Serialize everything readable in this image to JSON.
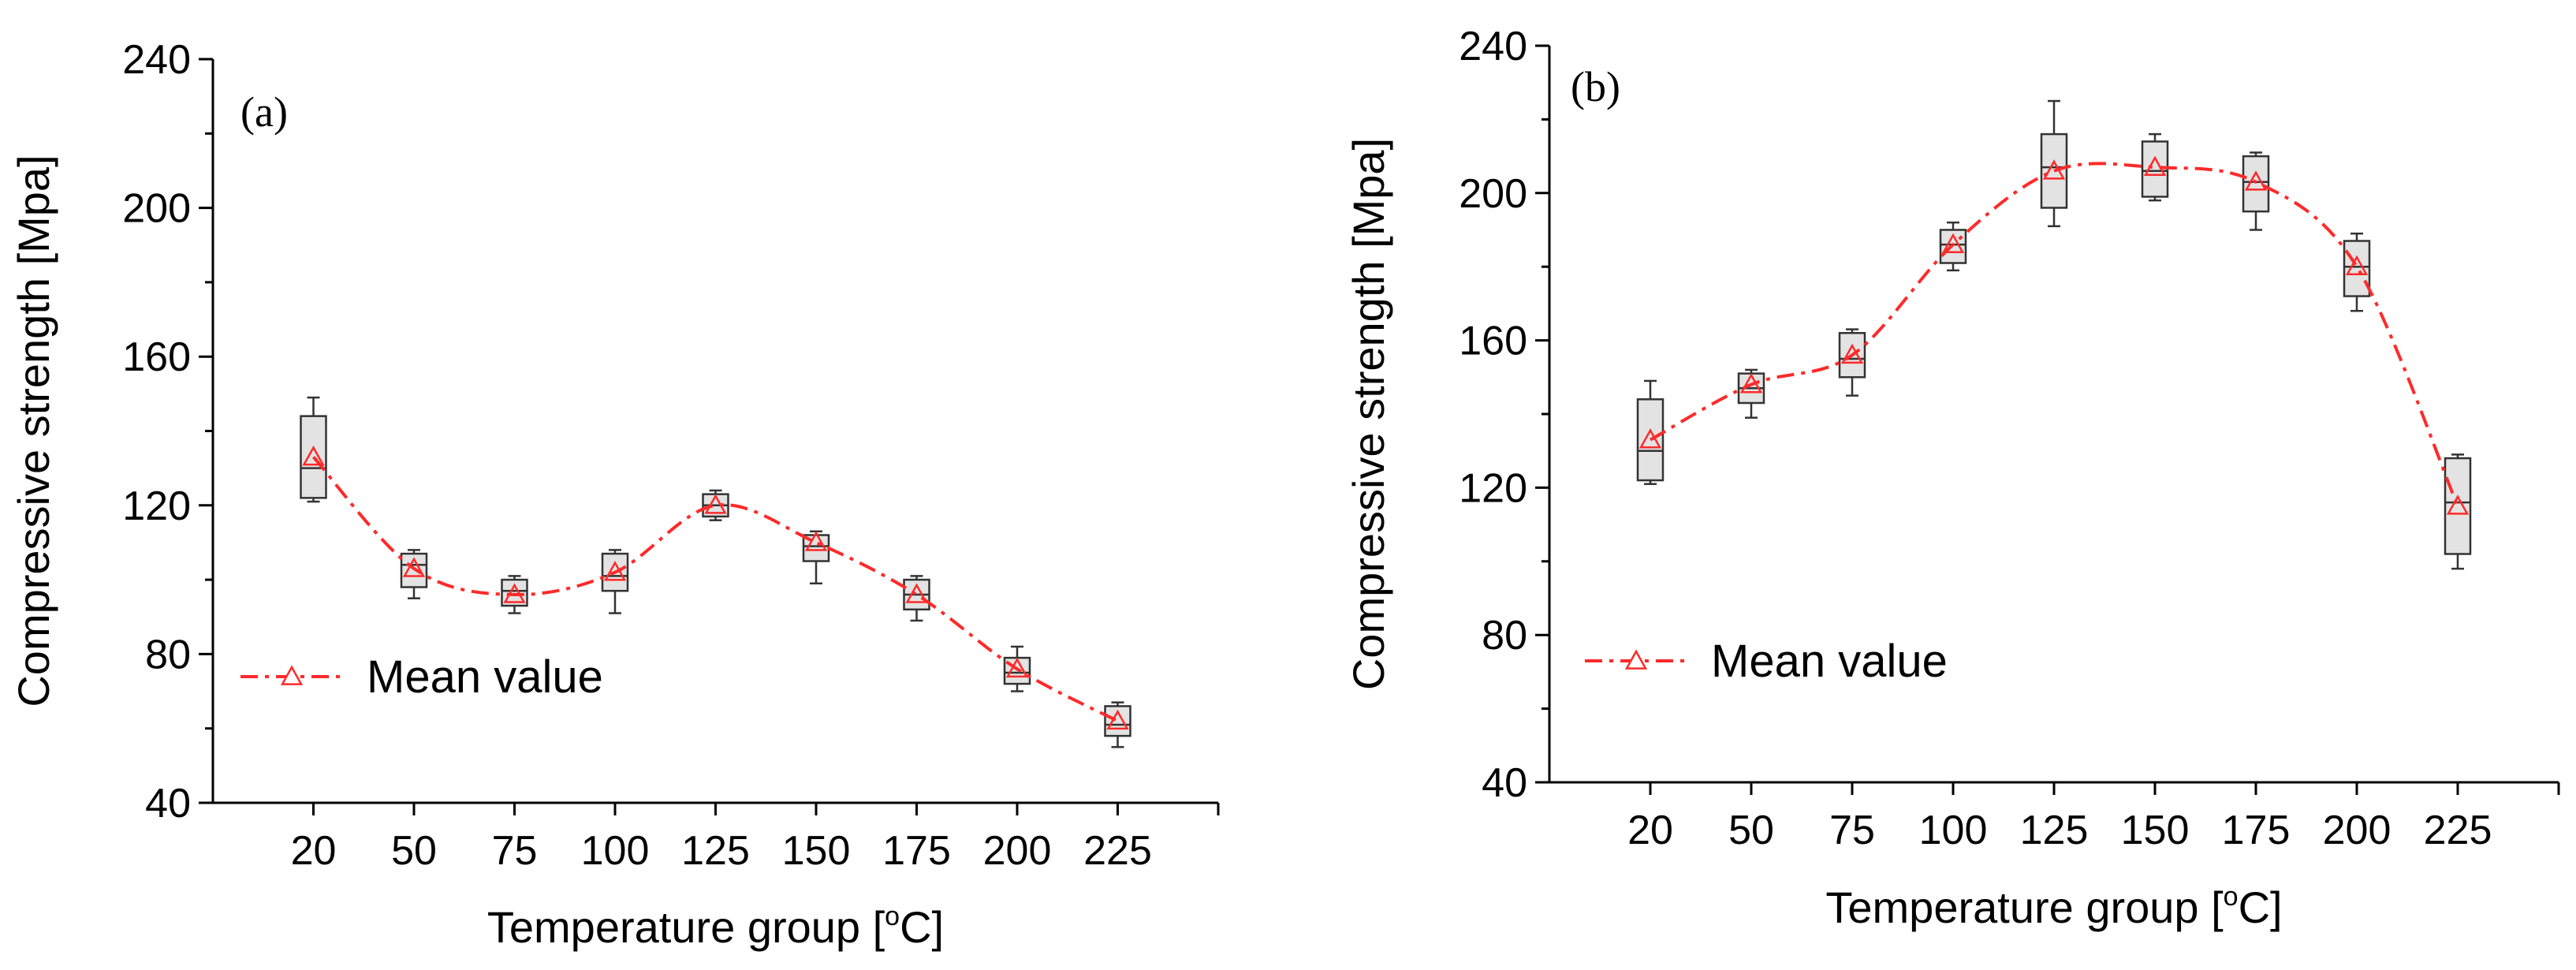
{
  "chart_data": [
    {
      "type": "box",
      "panel": "(a)",
      "xlabel": "Temperature group [°C]",
      "xlabel_prefix": "Temperature group [",
      "xlabel_degree": "o",
      "xlabel_suffix": "C]",
      "ylabel": "Compressive strength [Mpa]",
      "ylim": [
        40,
        240
      ],
      "yticks": [
        40,
        80,
        120,
        160,
        200,
        240
      ],
      "categories": [
        "20",
        "50",
        "75",
        "100",
        "125",
        "150",
        "175",
        "200",
        "225"
      ],
      "boxes": [
        {
          "min": 121,
          "q1": 122,
          "median": 130,
          "q3": 144,
          "max": 149
        },
        {
          "min": 95,
          "q1": 98,
          "median": 104,
          "q3": 107,
          "max": 108
        },
        {
          "min": 91,
          "q1": 93,
          "median": 97,
          "q3": 100,
          "max": 101
        },
        {
          "min": 91,
          "q1": 97,
          "median": 101,
          "q3": 107,
          "max": 108
        },
        {
          "min": 116,
          "q1": 117,
          "median": 120,
          "q3": 123,
          "max": 124
        },
        {
          "min": 99,
          "q1": 105,
          "median": 109,
          "q3": 112,
          "max": 113
        },
        {
          "min": 89,
          "q1": 92,
          "median": 96,
          "q3": 100,
          "max": 101
        },
        {
          "min": 70,
          "q1": 72,
          "median": 75,
          "q3": 79,
          "max": 82
        },
        {
          "min": 55,
          "q1": 58,
          "median": 61,
          "q3": 66,
          "max": 67
        }
      ],
      "mean_series": {
        "name": "Mean value",
        "values": [
          133,
          103,
          96,
          102,
          120,
          110,
          96,
          76,
          62
        ]
      },
      "legend": "left, lower-middle"
    },
    {
      "type": "box",
      "panel": "(b)",
      "xlabel": "Temperature group [°C]",
      "xlabel_prefix": "Temperature group [",
      "xlabel_degree": "o",
      "xlabel_suffix": "C]",
      "ylabel": "Compressive strength [Mpa]",
      "ylim": [
        40,
        240
      ],
      "yticks": [
        40,
        80,
        120,
        160,
        200,
        240
      ],
      "categories": [
        "20",
        "50",
        "75",
        "100",
        "125",
        "150",
        "175",
        "200",
        "225"
      ],
      "boxes": [
        {
          "min": 121,
          "q1": 122,
          "median": 130,
          "q3": 144,
          "max": 149
        },
        {
          "min": 139,
          "q1": 143,
          "median": 147,
          "q3": 151,
          "max": 152
        },
        {
          "min": 145,
          "q1": 150,
          "median": 155,
          "q3": 162,
          "max": 163
        },
        {
          "min": 179,
          "q1": 181,
          "median": 186,
          "q3": 190,
          "max": 192
        },
        {
          "min": 191,
          "q1": 196,
          "median": 207,
          "q3": 216,
          "max": 225
        },
        {
          "min": 198,
          "q1": 199,
          "median": 206,
          "q3": 214,
          "max": 216
        },
        {
          "min": 190,
          "q1": 195,
          "median": 203,
          "q3": 210,
          "max": 211
        },
        {
          "min": 168,
          "q1": 172,
          "median": 180,
          "q3": 187,
          "max": 189
        },
        {
          "min": 98,
          "q1": 102,
          "median": 116,
          "q3": 128,
          "max": 129
        }
      ],
      "mean_series": {
        "name": "Mean value",
        "values": [
          133,
          148,
          156,
          186,
          206,
          207,
          203,
          180,
          115
        ]
      },
      "legend": "left, lower-middle"
    }
  ],
  "colors": {
    "mean_line": "#ff2a2a",
    "box_fill": "#e3e3e3",
    "box_stroke": "#333333",
    "axis": "#000000"
  }
}
